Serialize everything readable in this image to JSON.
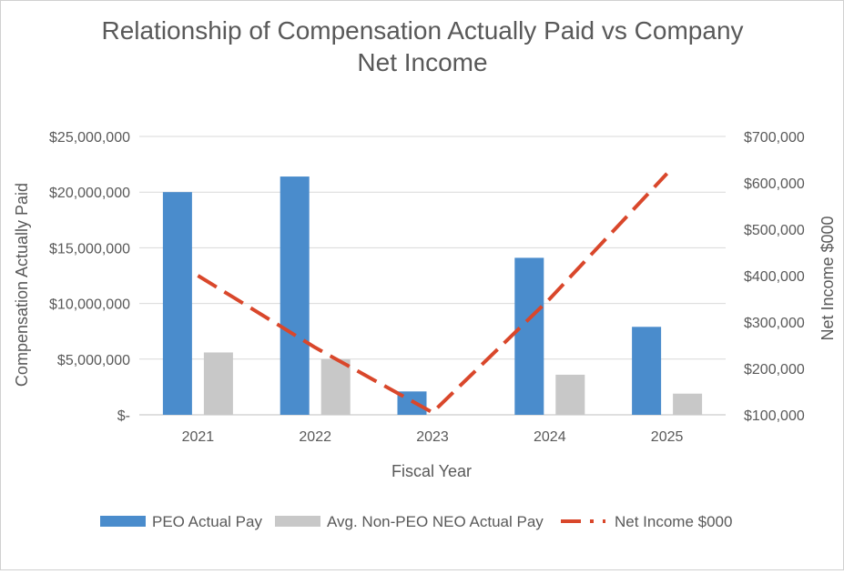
{
  "chart_data": {
    "type": "bar+line",
    "title_line1": "Relationship of Compensation Actually Paid vs Company",
    "title_line2": "Net Income",
    "xlabel": "Fiscal Year",
    "ylabel": "Compensation Actually Paid",
    "y2label": "Net Income $000",
    "categories": [
      "2021",
      "2022",
      "2023",
      "2024",
      "2025"
    ],
    "y_ticks": [
      "$-",
      "$5,000,000",
      "$10,000,000",
      "$15,000,000",
      "$20,000,000",
      "$25,000,000"
    ],
    "y_tick_values": [
      0,
      5000000,
      10000000,
      15000000,
      20000000,
      25000000
    ],
    "y2_ticks": [
      "$100,000",
      "$200,000",
      "$300,000",
      "$400,000",
      "$500,000",
      "$600,000",
      "$700,000"
    ],
    "y2_tick_values": [
      100000,
      200000,
      300000,
      400000,
      500000,
      600000,
      700000
    ],
    "ylim": [
      0,
      25000000
    ],
    "y2lim": [
      100000,
      700000
    ],
    "grid": true,
    "legend_position": "bottom",
    "series": [
      {
        "name": "PEO Actual Pay",
        "type": "bar",
        "axis": "left",
        "color": "#4a8ccc",
        "values": [
          20000000,
          21400000,
          2100000,
          14100000,
          7900000
        ]
      },
      {
        "name": "Avg. Non-PEO NEO Actual Pay",
        "type": "bar",
        "axis": "left",
        "color": "#c8c8c8",
        "values": [
          5600000,
          5000000,
          0,
          3600000,
          1900000
        ]
      },
      {
        "name": "Net Income $000",
        "type": "line",
        "axis": "right",
        "color": "#d9472b",
        "dash": true,
        "values": [
          400000,
          245000,
          105000,
          350000,
          620000
        ]
      }
    ]
  }
}
